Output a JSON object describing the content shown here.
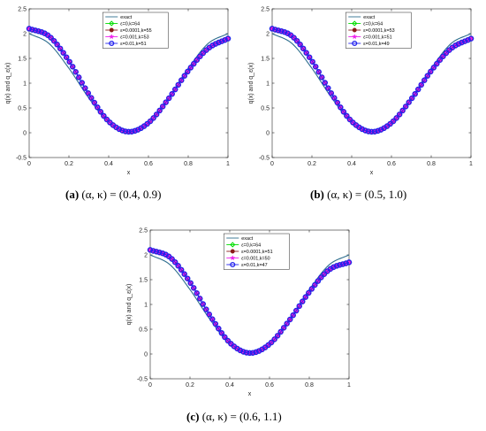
{
  "chart_data": [
    {
      "type": "line",
      "caption_tag": "(a)",
      "caption_text": "(α, κ) = (0.4, 0.9)",
      "xlabel": "x",
      "ylabel": "q(x) and q_ε(x)",
      "xlim": [
        0,
        1
      ],
      "ylim": [
        -0.5,
        2.5
      ],
      "xticks": [
        "0",
        "0.2",
        "0.4",
        "0.6",
        "0.8",
        "1"
      ],
      "yticks": [
        "-0.5",
        "0",
        "0.5",
        "1",
        "1.5",
        "2",
        "2.5"
      ],
      "grid": false,
      "legend_position": "top-center",
      "series": [
        {
          "name": "exact",
          "color": "#2e6e8e",
          "marker": "none",
          "x": [
            0,
            0.1,
            0.2,
            0.3,
            0.4,
            0.5,
            0.6,
            0.7,
            0.8,
            0.9,
            1.0
          ],
          "y": [
            2.0,
            1.8,
            1.3,
            0.7,
            0.2,
            0.0,
            0.2,
            0.7,
            1.3,
            1.8,
            2.0
          ]
        },
        {
          "name": "ε=0,k=64",
          "color": "#00dd00",
          "marker": "diamond",
          "x": [
            0,
            0.1,
            0.2,
            0.3,
            0.4,
            0.5,
            0.6,
            0.7,
            0.8,
            0.9,
            1.0
          ],
          "y": [
            2.1,
            1.95,
            1.45,
            0.78,
            0.23,
            0.02,
            0.2,
            0.68,
            1.25,
            1.7,
            1.9
          ]
        },
        {
          "name": "ε=0.0001,k=55",
          "color": "#8b1a1a",
          "marker": "circle-filled",
          "x": [
            0,
            0.1,
            0.2,
            0.3,
            0.4,
            0.5,
            0.6,
            0.7,
            0.8,
            0.9,
            1.0
          ],
          "y": [
            2.1,
            1.95,
            1.45,
            0.78,
            0.23,
            0.02,
            0.2,
            0.68,
            1.25,
            1.7,
            1.9
          ]
        },
        {
          "name": "ε=0.001,k=53",
          "color": "#ee22ee",
          "marker": "star",
          "x": [
            0,
            0.1,
            0.2,
            0.3,
            0.4,
            0.5,
            0.6,
            0.7,
            0.8,
            0.9,
            1.0
          ],
          "y": [
            2.1,
            1.95,
            1.45,
            0.78,
            0.23,
            0.02,
            0.2,
            0.68,
            1.25,
            1.7,
            1.9
          ]
        },
        {
          "name": "ε=0.01,k=51",
          "color": "#2222ee",
          "marker": "circle",
          "x": [
            0,
            0.1,
            0.2,
            0.3,
            0.4,
            0.5,
            0.6,
            0.7,
            0.8,
            0.9,
            1.0
          ],
          "y": [
            2.1,
            1.95,
            1.45,
            0.78,
            0.23,
            0.02,
            0.2,
            0.68,
            1.25,
            1.7,
            1.9
          ]
        }
      ]
    },
    {
      "type": "line",
      "caption_tag": "(b)",
      "caption_text": "(α, κ) = (0.5, 1.0)",
      "xlabel": "x",
      "ylabel": "q(x) and q_ε(x)",
      "xlim": [
        0,
        1
      ],
      "ylim": [
        -0.5,
        2.5
      ],
      "xticks": [
        "0",
        "0.2",
        "0.4",
        "0.6",
        "0.8",
        "1"
      ],
      "yticks": [
        "-0.5",
        "0",
        "0.5",
        "1",
        "1.5",
        "2",
        "2.5"
      ],
      "grid": false,
      "legend_position": "top-center",
      "series": [
        {
          "name": "exact",
          "color": "#2e6e8e",
          "marker": "none",
          "x": [
            0,
            0.1,
            0.2,
            0.3,
            0.4,
            0.5,
            0.6,
            0.7,
            0.8,
            0.9,
            1.0
          ],
          "y": [
            2.0,
            1.8,
            1.3,
            0.7,
            0.2,
            0.0,
            0.2,
            0.7,
            1.3,
            1.8,
            2.0
          ]
        },
        {
          "name": "ε=0,k=64",
          "color": "#00dd00",
          "marker": "diamond",
          "x": [
            0,
            0.1,
            0.2,
            0.3,
            0.4,
            0.5,
            0.6,
            0.7,
            0.8,
            0.9,
            1.0
          ],
          "y": [
            2.1,
            1.95,
            1.45,
            0.78,
            0.23,
            0.02,
            0.2,
            0.68,
            1.25,
            1.7,
            1.9
          ]
        },
        {
          "name": "ε=0.0001,k=53",
          "color": "#8b1a1a",
          "marker": "circle-filled",
          "x": [
            0,
            0.1,
            0.2,
            0.3,
            0.4,
            0.5,
            0.6,
            0.7,
            0.8,
            0.9,
            1.0
          ],
          "y": [
            2.1,
            1.95,
            1.45,
            0.78,
            0.23,
            0.02,
            0.2,
            0.68,
            1.25,
            1.7,
            1.9
          ]
        },
        {
          "name": "ε=0.001,k=51",
          "color": "#ee22ee",
          "marker": "star",
          "x": [
            0,
            0.1,
            0.2,
            0.3,
            0.4,
            0.5,
            0.6,
            0.7,
            0.8,
            0.9,
            1.0
          ],
          "y": [
            2.1,
            1.95,
            1.45,
            0.78,
            0.23,
            0.02,
            0.2,
            0.68,
            1.25,
            1.7,
            1.9
          ]
        },
        {
          "name": "ε=0.01,k=49",
          "color": "#2222ee",
          "marker": "circle",
          "x": [
            0,
            0.1,
            0.2,
            0.3,
            0.4,
            0.5,
            0.6,
            0.7,
            0.8,
            0.9,
            1.0
          ],
          "y": [
            2.1,
            1.95,
            1.45,
            0.78,
            0.23,
            0.02,
            0.2,
            0.68,
            1.25,
            1.7,
            1.9
          ]
        }
      ]
    },
    {
      "type": "line",
      "caption_tag": "(c)",
      "caption_text": "(α, κ) = (0.6, 1.1)",
      "xlabel": "x",
      "ylabel": "q(x) and q_ε(x)",
      "xlim": [
        0,
        1
      ],
      "ylim": [
        -0.5,
        2.5
      ],
      "xticks": [
        "0",
        "0.2",
        "0.4",
        "0.6",
        "0.8",
        "1"
      ],
      "yticks": [
        "-0.5",
        "0",
        "0.5",
        "1",
        "1.5",
        "2",
        "2.5"
      ],
      "grid": false,
      "legend_position": "top-center",
      "series": [
        {
          "name": "exact",
          "color": "#2e6e8e",
          "marker": "none",
          "x": [
            0,
            0.1,
            0.2,
            0.3,
            0.4,
            0.5,
            0.6,
            0.7,
            0.8,
            0.9,
            1.0
          ],
          "y": [
            2.0,
            1.8,
            1.3,
            0.7,
            0.2,
            0.0,
            0.2,
            0.7,
            1.3,
            1.8,
            2.0
          ]
        },
        {
          "name": "ε=0,k=64",
          "color": "#00dd00",
          "marker": "diamond",
          "x": [
            0,
            0.1,
            0.2,
            0.3,
            0.4,
            0.5,
            0.6,
            0.7,
            0.8,
            0.9,
            1.0
          ],
          "y": [
            2.1,
            1.95,
            1.45,
            0.78,
            0.23,
            0.02,
            0.2,
            0.68,
            1.25,
            1.7,
            1.85
          ]
        },
        {
          "name": "ε=0.0001,k=51",
          "color": "#8b1a1a",
          "marker": "circle-filled",
          "x": [
            0,
            0.1,
            0.2,
            0.3,
            0.4,
            0.5,
            0.6,
            0.7,
            0.8,
            0.9,
            1.0
          ],
          "y": [
            2.1,
            1.95,
            1.45,
            0.78,
            0.23,
            0.02,
            0.2,
            0.68,
            1.25,
            1.7,
            1.85
          ]
        },
        {
          "name": "ε=0.001,k=50",
          "color": "#ee22ee",
          "marker": "star",
          "x": [
            0,
            0.1,
            0.2,
            0.3,
            0.4,
            0.5,
            0.6,
            0.7,
            0.8,
            0.9,
            1.0
          ],
          "y": [
            2.1,
            1.95,
            1.45,
            0.78,
            0.23,
            0.02,
            0.2,
            0.68,
            1.25,
            1.7,
            1.85
          ]
        },
        {
          "name": "ε=0.01,k=47",
          "color": "#2222ee",
          "marker": "circle",
          "x": [
            0,
            0.1,
            0.2,
            0.3,
            0.4,
            0.5,
            0.6,
            0.7,
            0.8,
            0.9,
            1.0
          ],
          "y": [
            2.1,
            1.95,
            1.45,
            0.78,
            0.23,
            0.02,
            0.2,
            0.68,
            1.25,
            1.7,
            1.85
          ]
        }
      ]
    }
  ]
}
